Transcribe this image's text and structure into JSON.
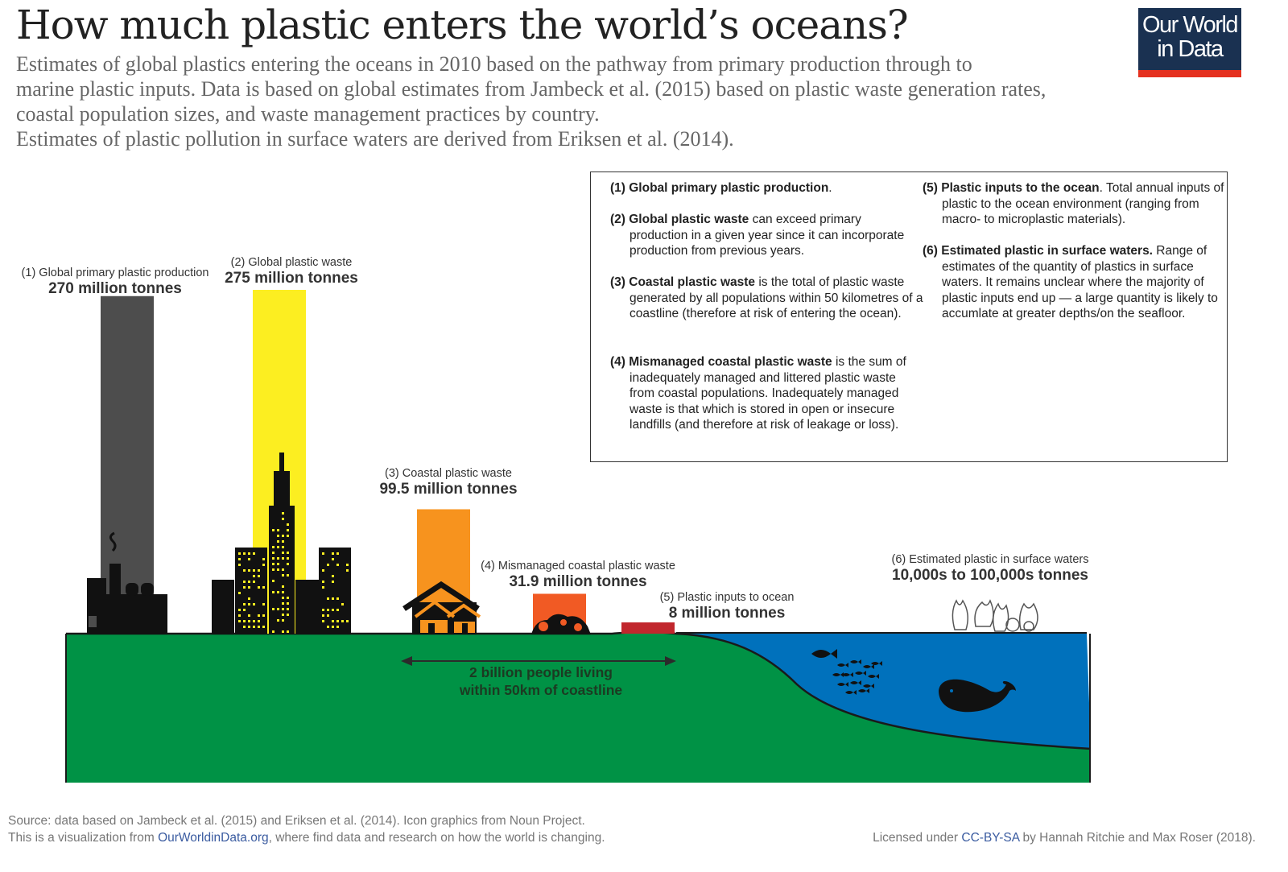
{
  "header": {
    "title": "How much plastic enters the world’s oceans?",
    "subtitle_lines": [
      "Estimates of global plastics entering the oceans in 2010 based on the pathway from primary production through to",
      "marine plastic inputs. Data is based on global estimates from Jambeck et al. (2015) based on plastic waste generation rates,",
      "coastal population sizes, and waste management practices by country.",
      "Estimates of plastic pollution in surface waters are derived from Eriksen et al. (2014)."
    ],
    "logo_line1": "Our World",
    "logo_line2": "in Data"
  },
  "legend": {
    "items": [
      {
        "bold": "(1) Global primary plastic production",
        "rest": "."
      },
      {
        "bold": "(2) Global plastic waste",
        "rest": " can exceed primary production in a given year since it can incorporate production from previous years."
      },
      {
        "bold": "(3) Coastal plastic waste",
        "rest": " is the total of plastic waste generated by all populations within 50 kilometres of a coastline (therefore at risk of entering the ocean)."
      },
      {
        "bold": "(4) Mismanaged coastal plastic waste",
        "rest": " is the sum of inadequately managed and littered plastic waste from coastal populations. Inadequately managed waste is that which is stored in open or insecure landfills (and therefore at risk of leakage or loss)."
      },
      {
        "bold": "(5) Plastic inputs to the ocean",
        "rest": ". Total annual inputs of plastic to the ocean environment (ranging from macro- to microplastic materials)."
      },
      {
        "bold": "(6) Estimated plastic in surface waters.",
        "rest": " Range of estimates of the quantity of plastics in surface waters. It remains unclear where the majority of plastic inputs end up — a large quantity is likely to accumlate at greater depths/on the seafloor."
      }
    ]
  },
  "chart_data": {
    "type": "bar",
    "unit": "million tonnes",
    "categories": [
      "(1) Global primary plastic production",
      "(2) Global plastic waste",
      "(3) Coastal plastic waste",
      "(4) Mismanaged coastal plastic waste",
      "(5) Plastic inputs to ocean",
      "(6) Estimated plastic in surface waters"
    ],
    "values": [
      270,
      275,
      99.5,
      31.9,
      8,
      null
    ],
    "value_labels": [
      "270 million tonnes",
      "275 million tonnes",
      "99.5 million tonnes",
      "31.9 million tonnes",
      "8 million tonnes",
      "10,000s to 100,000s tonnes"
    ],
    "colors": [
      "#4d4d4d",
      "#fcee21",
      "#f7931e",
      "#f15a24",
      "#c1272d",
      null
    ],
    "annotation": [
      "2 billion people living",
      "within 50km of coastline"
    ],
    "land_color": "#009245",
    "ocean_color": "#0071bc"
  },
  "footer": {
    "source": "Source: data based on Jambeck et al. (2015) and Eriksen et al. (2014). Icon graphics from Noun Project.",
    "viz_prefix": "This is a visualization from ",
    "viz_link": "OurWorldinData.org",
    "viz_suffix": ", where find data and research on how the world is changing.",
    "license_prefix": "Licensed under ",
    "license_link": "CC-BY-SA",
    "license_suffix": " by Hannah Ritchie and Max Roser (2018)."
  }
}
